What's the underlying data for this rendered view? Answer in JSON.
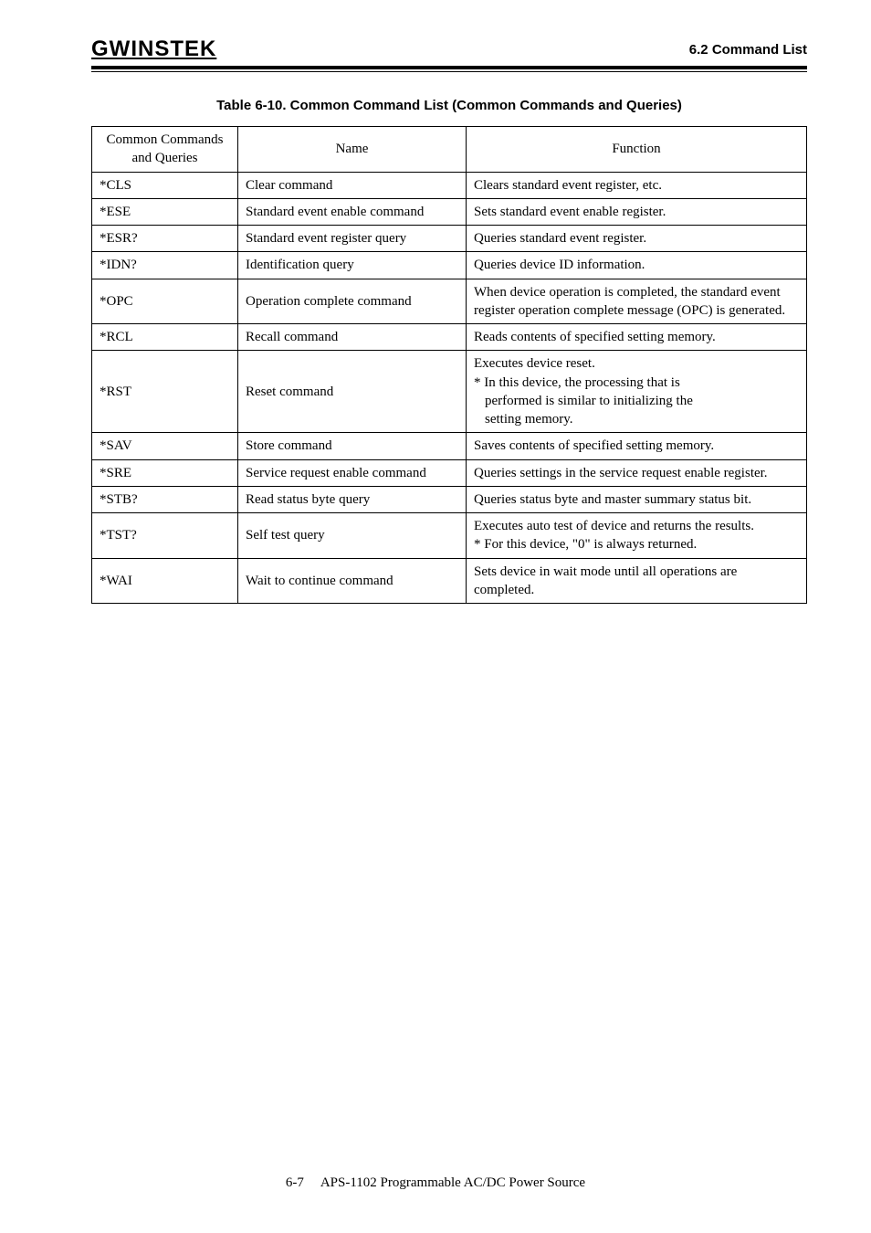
{
  "header": {
    "logo_text": "GWINSTEK",
    "section": "6.2 Command List"
  },
  "caption": "Table 6-10.  Common Command List (Common Commands and Queries)",
  "columns": {
    "cmd_line1": "Common Commands",
    "cmd_line2": "and Queries",
    "name": "Name",
    "function": "Function"
  },
  "rows": [
    {
      "cmd": "*CLS",
      "name": "Clear command",
      "func": [
        "Clears standard event register, etc."
      ]
    },
    {
      "cmd": "*ESE",
      "name": "Standard event enable command",
      "func": [
        "Sets standard event enable register."
      ]
    },
    {
      "cmd": "*ESR?",
      "name": "Standard event register query",
      "func": [
        "Queries standard event register."
      ]
    },
    {
      "cmd": "*IDN?",
      "name": "Identification query",
      "func": [
        "Queries device ID information."
      ]
    },
    {
      "cmd": "*OPC",
      "name": "Operation complete command",
      "func": [
        "When device operation is completed, the standard event register operation complete message (OPC) is generated."
      ]
    },
    {
      "cmd": "*RCL",
      "name": "Recall command",
      "func": [
        "Reads contents of specified setting memory."
      ]
    },
    {
      "cmd": "*RST",
      "name": "Reset command",
      "func": [
        "Executes device reset.",
        "* In this device, the processing that is",
        "  performed is similar to initializing the",
        "  setting memory."
      ]
    },
    {
      "cmd": "*SAV",
      "name": "Store command",
      "func": [
        "Saves contents of specified setting memory."
      ]
    },
    {
      "cmd": "*SRE",
      "name": "Service request enable command",
      "func": [
        "Queries settings in the service request enable register."
      ]
    },
    {
      "cmd": "*STB?",
      "name": "Read status byte query",
      "func": [
        "Queries status byte and master summary status bit."
      ]
    },
    {
      "cmd": "*TST?",
      "name": "Self test query",
      "func": [
        "Executes auto test of device and returns the results.",
        "* For this device, \"0\" is always returned."
      ]
    },
    {
      "cmd": "*WAI",
      "name": "Wait to continue command",
      "func": [
        "Sets device in wait mode until all operations are completed."
      ]
    }
  ],
  "footer": {
    "page": "6-7",
    "title": "APS-1102 Programmable AC/DC Power Source"
  }
}
